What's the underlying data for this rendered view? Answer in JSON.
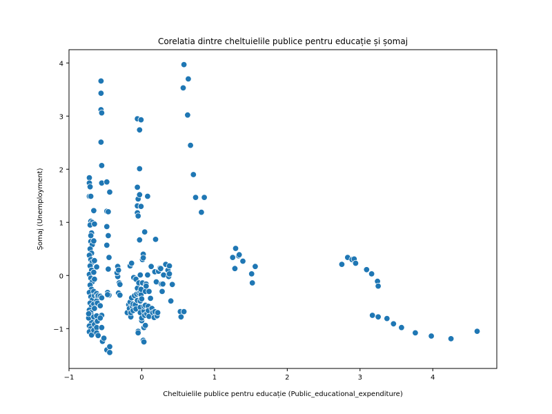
{
  "chart_data": {
    "type": "scatter",
    "title": "Corelatia dintre cheltuielile publice pentru educație și șomaj",
    "xlabel": "Cheltuielile publice pentru educație (Public_educational_expenditure)",
    "ylabel": "Șomaj (Unemployment)",
    "xlim": [
      -1.0,
      4.88
    ],
    "ylim": [
      -1.75,
      4.25
    ],
    "xticks": [
      -1,
      0,
      1,
      2,
      3,
      4
    ],
    "yticks": [
      -1,
      0,
      1,
      2,
      3,
      4
    ],
    "grid": false,
    "marker_color": "#1f77b4",
    "marker_edge_color": "#ffffff",
    "points": [
      [
        -0.72,
        1.84
      ],
      [
        -0.72,
        1.74
      ],
      [
        -0.71,
        1.67
      ],
      [
        -0.72,
        1.49
      ],
      [
        -0.7,
        1.49
      ],
      [
        -0.7,
        1.02
      ],
      [
        -0.68,
        1.0
      ],
      [
        -0.71,
        0.95
      ],
      [
        -0.69,
        0.8
      ],
      [
        -0.7,
        0.75
      ],
      [
        -0.7,
        0.64
      ],
      [
        -0.68,
        0.58
      ],
      [
        -0.71,
        0.5
      ],
      [
        -0.69,
        0.42
      ],
      [
        -0.72,
        0.38
      ],
      [
        -0.7,
        0.3
      ],
      [
        -0.68,
        0.25
      ],
      [
        -0.71,
        0.18
      ],
      [
        -0.69,
        0.1
      ],
      [
        -0.72,
        0.02
      ],
      [
        -0.7,
        -0.05
      ],
      [
        -0.68,
        -0.12
      ],
      [
        -0.71,
        -0.18
      ],
      [
        -0.69,
        -0.26
      ],
      [
        -0.72,
        -0.32
      ],
      [
        -0.7,
        -0.4
      ],
      [
        -0.68,
        -0.46
      ],
      [
        -0.71,
        -0.52
      ],
      [
        -0.69,
        -0.58
      ],
      [
        -0.72,
        -0.65
      ],
      [
        -0.7,
        -0.7
      ],
      [
        -0.68,
        -0.76
      ],
      [
        -0.71,
        -0.82
      ],
      [
        -0.69,
        -0.88
      ],
      [
        -0.72,
        -0.95
      ],
      [
        -0.7,
        -1.0
      ],
      [
        -0.72,
        -1.06
      ],
      [
        -0.69,
        -1.12
      ],
      [
        -0.73,
        -0.8
      ],
      [
        -0.73,
        -0.72
      ],
      [
        -0.66,
        1.22
      ],
      [
        -0.65,
        0.97
      ],
      [
        -0.66,
        0.65
      ],
      [
        -0.65,
        0.28
      ],
      [
        -0.66,
        0.06
      ],
      [
        -0.65,
        -0.07
      ],
      [
        -0.66,
        -0.3
      ],
      [
        -0.65,
        -0.38
      ],
      [
        -0.66,
        -0.54
      ],
      [
        -0.65,
        -0.62
      ],
      [
        -0.66,
        -0.78
      ],
      [
        -0.65,
        -0.92
      ],
      [
        -0.66,
        -1.03
      ],
      [
        -0.62,
        0.16
      ],
      [
        -0.62,
        -0.34
      ],
      [
        -0.61,
        -0.4
      ],
      [
        -0.62,
        -0.48
      ],
      [
        -0.61,
        -0.52
      ],
      [
        -0.62,
        -0.76
      ],
      [
        -0.61,
        -0.86
      ],
      [
        -0.62,
        -0.98
      ],
      [
        -0.62,
        -1.08
      ],
      [
        -0.6,
        -1.13
      ],
      [
        -0.6,
        -0.38
      ],
      [
        -0.56,
        3.66
      ],
      [
        -0.56,
        3.43
      ],
      [
        -0.56,
        3.12
      ],
      [
        -0.55,
        3.06
      ],
      [
        -0.56,
        2.51
      ],
      [
        -0.55,
        2.07
      ],
      [
        -0.55,
        1.74
      ],
      [
        -0.57,
        -0.39
      ],
      [
        -0.55,
        -0.42
      ],
      [
        -0.57,
        -0.57
      ],
      [
        -0.55,
        -0.75
      ],
      [
        -0.57,
        -0.8
      ],
      [
        -0.55,
        -0.98
      ],
      [
        -0.54,
        -1.24
      ],
      [
        -0.52,
        -1.18
      ],
      [
        -0.48,
        1.76
      ],
      [
        -0.48,
        1.21
      ],
      [
        -0.46,
        1.2
      ],
      [
        -0.48,
        0.92
      ],
      [
        -0.46,
        0.75
      ],
      [
        -0.48,
        0.57
      ],
      [
        -0.45,
        0.34
      ],
      [
        -0.46,
        0.12
      ],
      [
        -0.47,
        -0.32
      ],
      [
        -0.45,
        -0.37
      ],
      [
        -0.48,
        -1.4
      ],
      [
        -0.44,
        -1.45
      ],
      [
        -0.44,
        -1.34
      ],
      [
        -0.44,
        1.57
      ],
      [
        -0.47,
        -0.36
      ],
      [
        -0.33,
        0.17
      ],
      [
        -0.33,
        0.07
      ],
      [
        -0.33,
        -0.02
      ],
      [
        -0.31,
        -0.14
      ],
      [
        -0.3,
        -0.17
      ],
      [
        -0.32,
        -0.33
      ],
      [
        -0.3,
        -0.37
      ],
      [
        -0.34,
        0.05
      ],
      [
        -0.32,
        0.1
      ],
      [
        -0.2,
        -0.7
      ],
      [
        -0.18,
        -0.55
      ],
      [
        -0.17,
        -0.62
      ],
      [
        -0.16,
        -0.5
      ],
      [
        -0.15,
        -0.78
      ],
      [
        -0.15,
        -0.7
      ],
      [
        -0.14,
        -0.42
      ],
      [
        -0.16,
        0.18
      ],
      [
        -0.14,
        0.23
      ],
      [
        -0.13,
        -0.58
      ],
      [
        -0.12,
        -0.66
      ],
      [
        -0.11,
        -0.04
      ],
      [
        -0.12,
        -0.54
      ],
      [
        -0.1,
        -0.38
      ],
      [
        -0.09,
        -0.55
      ],
      [
        -0.08,
        -0.63
      ],
      [
        -0.08,
        -0.07
      ],
      [
        -0.07,
        -0.35
      ],
      [
        -0.06,
        -0.24
      ],
      [
        -0.06,
        -0.47
      ],
      [
        -0.06,
        1.66
      ],
      [
        -0.06,
        1.31
      ],
      [
        -0.06,
        1.18
      ],
      [
        -0.05,
        1.44
      ],
      [
        -0.05,
        1.12
      ],
      [
        -0.06,
        2.95
      ],
      [
        -0.05,
        -1.05
      ],
      [
        -0.05,
        -1.08
      ],
      [
        -0.04,
        -0.33
      ],
      [
        -0.04,
        -0.14
      ],
      [
        -0.03,
        2.74
      ],
      [
        -0.03,
        2.01
      ],
      [
        -0.03,
        1.52
      ],
      [
        -0.03,
        0.67
      ],
      [
        -0.02,
        -0.31
      ],
      [
        -0.02,
        -0.48
      ],
      [
        -0.02,
        -0.6
      ],
      [
        -0.02,
        -0.7
      ],
      [
        -0.02,
        0.01
      ],
      [
        -0.01,
        2.93
      ],
      [
        -0.01,
        1.3
      ],
      [
        -0.01,
        -0.36
      ],
      [
        -0.01,
        -0.26
      ],
      [
        0.0,
        -0.85
      ],
      [
        0.0,
        -0.44
      ],
      [
        0.0,
        -0.8
      ],
      [
        0.01,
        -0.14
      ],
      [
        0.01,
        0.3
      ],
      [
        0.02,
        0.4
      ],
      [
        0.02,
        0.33
      ],
      [
        0.02,
        -1.22
      ],
      [
        0.03,
        -1.25
      ],
      [
        0.03,
        -0.98
      ],
      [
        0.03,
        -0.67
      ],
      [
        0.03,
        -0.58
      ],
      [
        0.04,
        0.82
      ],
      [
        0.04,
        -0.75
      ],
      [
        0.05,
        -0.94
      ],
      [
        0.05,
        -0.56
      ],
      [
        0.05,
        -0.3
      ],
      [
        0.06,
        -0.16
      ],
      [
        0.06,
        -0.2
      ],
      [
        0.07,
        -0.72
      ],
      [
        0.08,
        1.49
      ],
      [
        0.08,
        0.01
      ],
      [
        0.09,
        -0.58
      ],
      [
        0.09,
        -0.66
      ],
      [
        0.1,
        -0.77
      ],
      [
        0.1,
        -0.3
      ],
      [
        0.12,
        -0.43
      ],
      [
        0.13,
        0.17
      ],
      [
        0.14,
        -0.62
      ],
      [
        0.15,
        -0.7
      ],
      [
        0.17,
        -0.79
      ],
      [
        0.18,
        0.07
      ],
      [
        0.18,
        -0.68
      ],
      [
        0.19,
        0.68
      ],
      [
        0.2,
        -0.12
      ],
      [
        0.21,
        -0.76
      ],
      [
        0.22,
        -0.7
      ],
      [
        0.23,
        0.08
      ],
      [
        0.25,
        0.14
      ],
      [
        0.26,
        0.13
      ],
      [
        0.27,
        -0.16
      ],
      [
        0.28,
        -0.3
      ],
      [
        0.29,
        -0.16
      ],
      [
        0.3,
        0.01
      ],
      [
        0.33,
        0.21
      ],
      [
        0.36,
        0.1
      ],
      [
        0.37,
        -0.02
      ],
      [
        0.38,
        0.03
      ],
      [
        0.38,
        0.18
      ],
      [
        0.4,
        -0.48
      ],
      [
        0.42,
        -0.17
      ],
      [
        0.58,
        3.97
      ],
      [
        0.57,
        3.53
      ],
      [
        0.64,
        3.7
      ],
      [
        0.63,
        3.02
      ],
      [
        0.67,
        2.45
      ],
      [
        0.71,
        1.9
      ],
      [
        0.74,
        1.47
      ],
      [
        0.86,
        1.47
      ],
      [
        0.82,
        1.19
      ],
      [
        0.53,
        -0.68
      ],
      [
        0.54,
        -0.78
      ],
      [
        0.58,
        -0.68
      ],
      [
        1.25,
        0.34
      ],
      [
        1.29,
        0.51
      ],
      [
        1.28,
        0.13
      ],
      [
        1.33,
        0.37
      ],
      [
        1.34,
        0.39
      ],
      [
        1.39,
        0.27
      ],
      [
        1.51,
        0.03
      ],
      [
        1.52,
        -0.14
      ],
      [
        1.56,
        0.17
      ],
      [
        2.75,
        0.21
      ],
      [
        2.83,
        0.34
      ],
      [
        2.89,
        0.3
      ],
      [
        2.92,
        0.31
      ],
      [
        2.94,
        0.23
      ],
      [
        3.09,
        0.11
      ],
      [
        3.16,
        0.03
      ],
      [
        3.24,
        -0.11
      ],
      [
        3.25,
        -0.2
      ],
      [
        3.17,
        -0.75
      ],
      [
        3.25,
        -0.78
      ],
      [
        3.37,
        -0.81
      ],
      [
        3.46,
        -0.91
      ],
      [
        3.57,
        -0.98
      ],
      [
        3.76,
        -1.08
      ],
      [
        3.98,
        -1.14
      ],
      [
        4.25,
        -1.19
      ],
      [
        4.61,
        -1.05
      ]
    ]
  }
}
